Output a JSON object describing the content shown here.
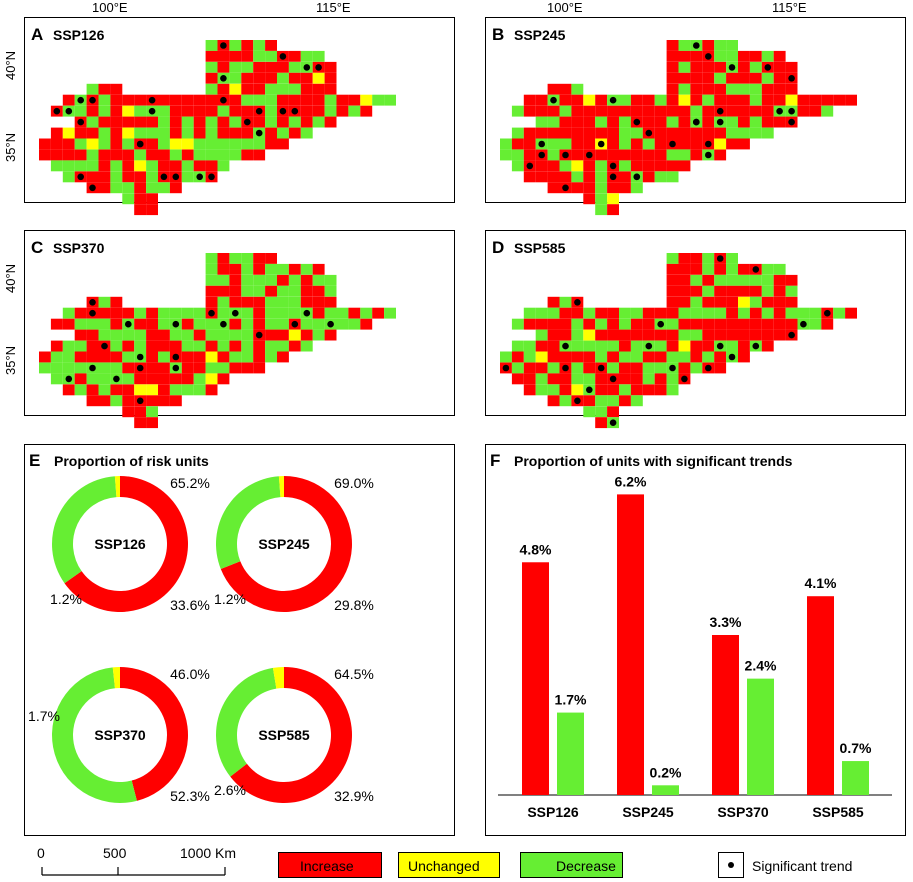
{
  "colors": {
    "increase": "#ff0000",
    "unchanged": "#ffff00",
    "decrease": "#66ee33",
    "dot": "#000000"
  },
  "axes": {
    "lon_ticks": [
      "100°E",
      "115°E"
    ],
    "lat_ticks": [
      "40°N",
      "35°N"
    ]
  },
  "maps": [
    {
      "label": "A",
      "title": "SSP126"
    },
    {
      "label": "B",
      "title": "SSP245"
    },
    {
      "label": "C",
      "title": "SSP370"
    },
    {
      "label": "D",
      "title": "SSP585"
    }
  ],
  "panel_e": {
    "label": "E",
    "title": "Proportion of risk units"
  },
  "panel_f": {
    "label": "F",
    "title": "Proportion of units with significant trends"
  },
  "chart_data": [
    {
      "type": "pie",
      "title": "Proportion of risk units",
      "donuts": [
        {
          "name": "SSP126",
          "increase": 65.2,
          "decrease": 33.6,
          "unchanged": 1.2,
          "labels": {
            "increase": "65.2%",
            "decrease": "33.6%",
            "unchanged": "1.2%"
          }
        },
        {
          "name": "SSP245",
          "increase": 69.0,
          "decrease": 29.8,
          "unchanged": 1.2,
          "labels": {
            "increase": "69.0%",
            "decrease": "29.8%",
            "unchanged": "1.2%"
          }
        },
        {
          "name": "SSP370",
          "increase": 46.0,
          "decrease": 52.3,
          "unchanged": 1.7,
          "labels": {
            "increase": "46.0%",
            "decrease": "52.3%",
            "unchanged": "1.7%"
          }
        },
        {
          "name": "SSP585",
          "increase": 64.5,
          "decrease": 32.9,
          "unchanged": 2.6,
          "labels": {
            "increase": "64.5%",
            "decrease": "32.9%",
            "unchanged": "2.6%"
          }
        }
      ]
    },
    {
      "type": "bar",
      "title": "Proportion of units with significant trends",
      "categories": [
        "SSP126",
        "SSP245",
        "SSP370",
        "SSP585"
      ],
      "series": [
        {
          "name": "Increase",
          "values": [
            4.8,
            6.2,
            3.3,
            4.1
          ],
          "labels": [
            "4.8%",
            "6.2%",
            "3.3%",
            "4.1%"
          ]
        },
        {
          "name": "Decrease",
          "values": [
            1.7,
            0.2,
            2.4,
            0.7
          ],
          "labels": [
            "1.7%",
            "0.2%",
            "2.4%",
            "0.7%"
          ]
        }
      ],
      "ylim": [
        0,
        6.6
      ]
    }
  ],
  "legend": [
    {
      "key": "increase",
      "label": "Increase"
    },
    {
      "key": "unchanged",
      "label": "Unchanged"
    },
    {
      "key": "decrease",
      "label": "Decrease"
    },
    {
      "key": "dot",
      "label": "Significant trend"
    }
  ],
  "scale_bar": {
    "ticks": [
      "0",
      "500",
      "1000 Km"
    ]
  }
}
